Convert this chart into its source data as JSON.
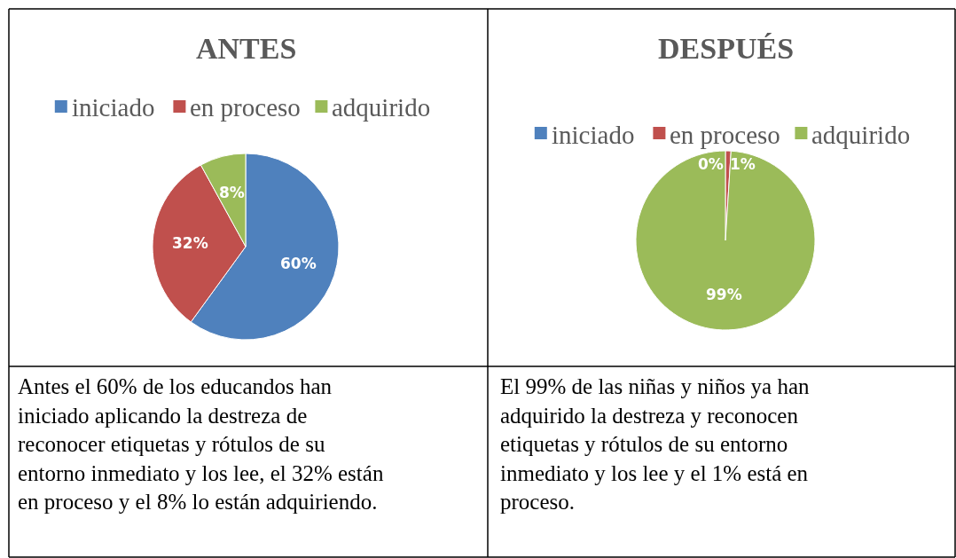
{
  "chart_data": [
    {
      "type": "pie",
      "title": "ANTES",
      "categories": [
        "iniciado",
        "en proceso",
        "adquirido"
      ],
      "values": [
        60,
        32,
        8
      ],
      "colors": [
        "#4f81bd",
        "#c0504d",
        "#9bbb59"
      ],
      "value_labels": [
        "60%",
        "32%",
        "8%"
      ],
      "legend": "top",
      "annotations": [
        "Antes el 60% de los educandos han iniciado aplicando la destreza de reconocer etiquetas y rótulos de su entorno inmediato y los lee, el 32% están en proceso y el 8% lo están adquiriendo."
      ]
    },
    {
      "type": "pie",
      "title": "DESPUÉS",
      "categories": [
        "iniciado",
        "en proceso",
        "adquirido"
      ],
      "values": [
        0,
        1,
        99
      ],
      "colors": [
        "#4f81bd",
        "#c0504d",
        "#9bbb59"
      ],
      "value_labels": [
        "0%",
        "1%",
        "99%"
      ],
      "legend": "top",
      "annotations": [
        "El 99% de las niñas y niños ya han adquirido la destreza y reconocen etiquetas y rótulos de su entorno inmediato y los lee y el 1% está en proceso."
      ]
    }
  ]
}
